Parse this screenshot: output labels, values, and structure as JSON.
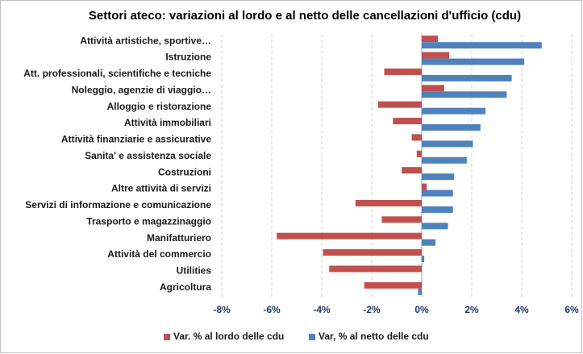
{
  "chart_data": {
    "type": "bar",
    "orientation": "horizontal",
    "title": "Settori ateco: variazioni al lordo e al netto delle cancellazioni d'ufficio (cdu)",
    "categories": [
      "Attività artistiche, sportive…",
      "Istruzione",
      "Att. professionali, scientifiche e tecniche",
      "Noleggio, agenzie di viaggio…",
      "Alloggio e ristorazione",
      "Attività immobiliari",
      "Attività finanziarie e assicurative",
      "Sanita' e assistenza sociale",
      "Costruzioni",
      "Altre attività di servizi",
      "Servizi di informazione e comunicazione",
      "Trasporto e magazzinaggio",
      "Manifatturiero",
      "Attività del commercio",
      "Utilities",
      "Agricoltura"
    ],
    "series": [
      {
        "name": "Var. % al lordo delle cdu",
        "color": "#c0504d",
        "values": [
          0.65,
          1.1,
          -1.5,
          0.9,
          -1.75,
          -1.15,
          -0.4,
          -0.2,
          -0.8,
          0.2,
          -2.65,
          -1.6,
          -5.8,
          -3.95,
          -3.7,
          -2.3
        ]
      },
      {
        "name": "Var, % al netto delle cdu",
        "color": "#4f81bd",
        "values": [
          4.8,
          4.1,
          3.6,
          3.4,
          2.55,
          2.35,
          2.05,
          1.8,
          1.3,
          1.25,
          1.25,
          1.05,
          0.55,
          0.1,
          0,
          -0.15
        ]
      }
    ],
    "xlim": [
      -8,
      6
    ],
    "xticks": [
      {
        "value": -8,
        "label": "-8%"
      },
      {
        "value": -6,
        "label": "-6%"
      },
      {
        "value": -4,
        "label": "-4%"
      },
      {
        "value": -2,
        "label": "-2%"
      },
      {
        "value": 0,
        "label": "0%"
      },
      {
        "value": 2,
        "label": "2%"
      },
      {
        "value": 4,
        "label": "4%"
      },
      {
        "value": 6,
        "label": "6%"
      }
    ],
    "grid": true,
    "legend": "bottom"
  }
}
